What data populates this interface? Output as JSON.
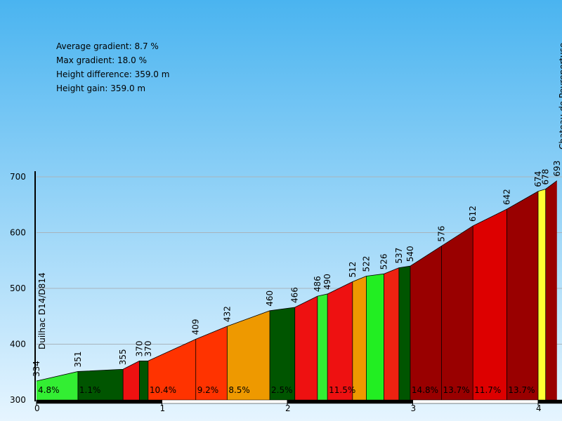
{
  "stats": {
    "avg_gradient": "Average gradient: 8.7 %",
    "max_gradient": "Max gradient: 18.0 %",
    "height_difference": "Height difference: 359.0 m",
    "height_gain": "Height gain: 359.0 m"
  },
  "chart_data": {
    "type": "area",
    "title": "",
    "xlabel": "",
    "ylabel": "",
    "xlim": [
      0,
      4.2
    ],
    "ylim": [
      300,
      700
    ],
    "x_ticks": [
      0,
      1,
      2,
      3,
      4
    ],
    "y_ticks": [
      300,
      400,
      500,
      600,
      700
    ],
    "grid": true,
    "points": [
      {
        "x": 0.0,
        "y": 334,
        "label": "334"
      },
      {
        "x": 0.33,
        "y": 351,
        "label": "351"
      },
      {
        "x": 0.69,
        "y": 355,
        "label": "355"
      },
      {
        "x": 0.82,
        "y": 370,
        "label": "370"
      },
      {
        "x": 0.89,
        "y": 370,
        "label": "370"
      },
      {
        "x": 1.27,
        "y": 409,
        "label": "409"
      },
      {
        "x": 1.52,
        "y": 432,
        "label": "432"
      },
      {
        "x": 1.86,
        "y": 460,
        "label": "460"
      },
      {
        "x": 2.06,
        "y": 466,
        "label": "466"
      },
      {
        "x": 2.24,
        "y": 486,
        "label": "486"
      },
      {
        "x": 2.32,
        "y": 490,
        "label": "490"
      },
      {
        "x": 2.52,
        "y": 512,
        "label": "512"
      },
      {
        "x": 2.63,
        "y": 522,
        "label": "522"
      },
      {
        "x": 2.77,
        "y": 526,
        "label": "526"
      },
      {
        "x": 2.89,
        "y": 537,
        "label": "537"
      },
      {
        "x": 2.98,
        "y": 540,
        "label": "540"
      },
      {
        "x": 3.23,
        "y": 576,
        "label": "576"
      },
      {
        "x": 3.48,
        "y": 612,
        "label": "612"
      },
      {
        "x": 3.75,
        "y": 642,
        "label": "642"
      },
      {
        "x": 4.0,
        "y": 674,
        "label": "674"
      },
      {
        "x": 4.06,
        "y": 678,
        "label": "678"
      },
      {
        "x": 4.15,
        "y": 693,
        "label": "693"
      }
    ],
    "segments": [
      {
        "color": "#33ee33",
        "label": "4.8%"
      },
      {
        "color": "#005500",
        "label": "1.1%"
      },
      {
        "color": "#ee1111",
        "label": ""
      },
      {
        "color": "#005500",
        "label": ""
      },
      {
        "color": "#ff3300",
        "label": "10.4%"
      },
      {
        "color": "#ff3300",
        "label": "9.2%"
      },
      {
        "color": "#ee9900",
        "label": "8.5%"
      },
      {
        "color": "#005500",
        "label": "2.5%"
      },
      {
        "color": "#ee1111",
        "label": ""
      },
      {
        "color": "#33ee33",
        "label": ""
      },
      {
        "color": "#ee1111",
        "label": "11.5%"
      },
      {
        "color": "#ee9900",
        "label": ""
      },
      {
        "color": "#22ee22",
        "label": ""
      },
      {
        "color": "#ee2211",
        "label": ""
      },
      {
        "color": "#005500",
        "label": ""
      },
      {
        "color": "#990000",
        "label": "14.8%"
      },
      {
        "color": "#990000",
        "label": "13.7%"
      },
      {
        "color": "#dd0000",
        "label": "11.7%"
      },
      {
        "color": "#990000",
        "label": "13.7%"
      },
      {
        "color": "#ffff33",
        "label": ""
      },
      {
        "color": "#990000",
        "label": ""
      }
    ],
    "annotations": [
      {
        "x": 0.0,
        "text": "Duilhac D14/D814"
      },
      {
        "x": 4.15,
        "text": "Chateau de Peyrepertuse"
      }
    ],
    "colors": {
      "sky_top": "#4ab4f0",
      "sky_bottom": "#e6f5ff",
      "grid": "#a8b4bc"
    }
  }
}
